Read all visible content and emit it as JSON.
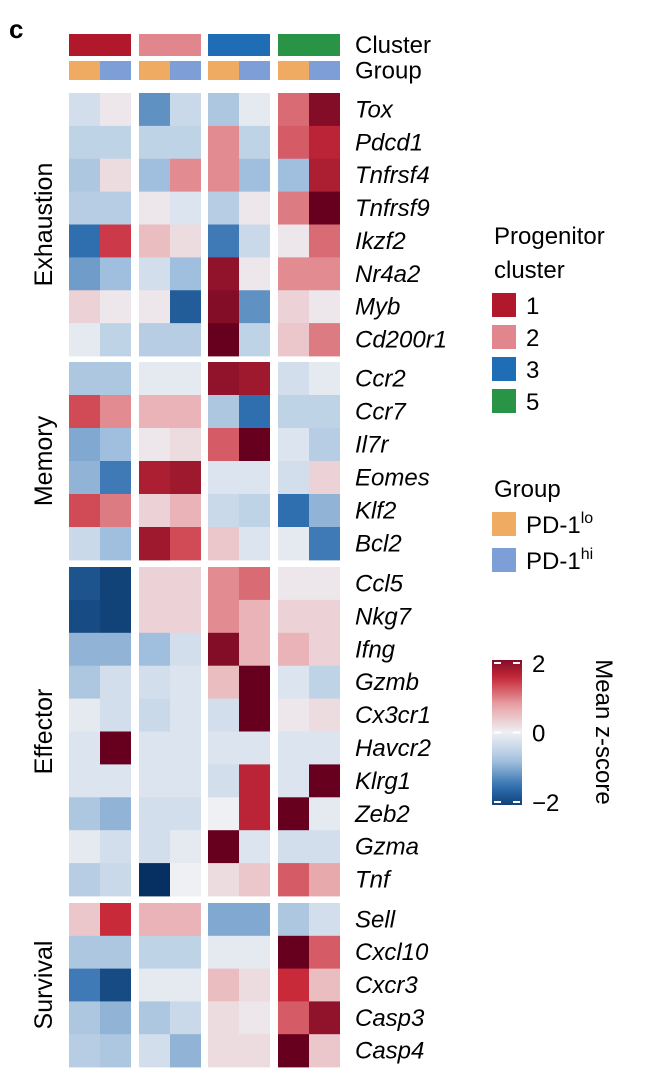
{
  "panel_label": "c",
  "chart_data": {
    "type": "heatmap",
    "annotation_rows": [
      {
        "label": "Cluster",
        "values": [
          "1",
          "1",
          "2",
          "2",
          "3",
          "3",
          "5",
          "5"
        ]
      },
      {
        "label": "Group",
        "values": [
          "PD-1lo",
          "PD-1hi",
          "PD-1lo",
          "PD-1hi",
          "PD-1lo",
          "PD-1hi",
          "PD-1lo",
          "PD-1hi"
        ]
      }
    ],
    "row_groups": [
      {
        "name": "Exhaustion",
        "genes": [
          "Tox",
          "Pdcd1",
          "Tnfrsf4",
          "Tnfrsf9",
          "Ikzf2",
          "Nr4a2",
          "Myb",
          "Cd200r1"
        ]
      },
      {
        "name": "Memory",
        "genes": [
          "Ccr2",
          "Ccr7",
          "Il7r",
          "Eomes",
          "Klf2",
          "Bcl2"
        ]
      },
      {
        "name": "Effector",
        "genes": [
          "Ccl5",
          "Nkg7",
          "Ifng",
          "Gzmb",
          "Cx3cr1",
          "Havcr2",
          "Klrg1",
          "Zeb2",
          "Gzma",
          "Tnf"
        ]
      },
      {
        "name": "Survival",
        "genes": [
          "Sell",
          "Cxcl10",
          "Cxcr3",
          "Casp3",
          "Casp4"
        ]
      }
    ],
    "values": [
      [
        -0.3,
        0.1,
        -1.2,
        -0.4,
        -0.7,
        -0.1,
        1.1,
        2.0
      ],
      [
        -0.5,
        -0.5,
        -0.5,
        -0.5,
        0.9,
        -0.5,
        1.2,
        1.6
      ],
      [
        -0.7,
        0.2,
        -0.8,
        0.9,
        0.9,
        -0.8,
        -0.8,
        1.7
      ],
      [
        -0.6,
        -0.6,
        0.1,
        -0.2,
        -0.6,
        0.1,
        1.0,
        2.5
      ],
      [
        -1.5,
        1.4,
        0.5,
        0.2,
        -1.4,
        -0.4,
        0.1,
        1.1
      ],
      [
        -1.1,
        -0.8,
        -0.3,
        -0.8,
        1.9,
        0.1,
        0.9,
        0.9
      ],
      [
        0.3,
        0.1,
        0.1,
        -1.7,
        2.0,
        -1.2,
        0.3,
        0.1
      ],
      [
        -0.1,
        -0.5,
        -0.6,
        -0.6,
        2.2,
        -0.5,
        0.4,
        1.0
      ],
      [
        -0.7,
        -0.7,
        -0.1,
        -0.1,
        1.9,
        1.8,
        -0.3,
        -0.1
      ],
      [
        1.3,
        0.9,
        0.6,
        0.6,
        -0.7,
        -1.5,
        -0.5,
        -0.5
      ],
      [
        -1.0,
        -0.8,
        0.1,
        0.2,
        1.2,
        2.2,
        -0.2,
        -0.6
      ],
      [
        -0.9,
        -1.4,
        1.7,
        1.8,
        -0.2,
        -0.2,
        -0.3,
        0.3
      ],
      [
        1.3,
        1.0,
        0.3,
        0.6,
        -0.4,
        -0.5,
        -1.5,
        -0.9
      ],
      [
        -0.4,
        -0.8,
        1.8,
        1.3,
        0.4,
        -0.2,
        -0.1,
        -1.4
      ],
      [
        -1.8,
        -2.0,
        0.3,
        0.3,
        0.9,
        1.1,
        0.1,
        0.1
      ],
      [
        -1.9,
        -2.0,
        0.3,
        0.3,
        0.9,
        0.6,
        0.3,
        0.3
      ],
      [
        -0.9,
        -0.9,
        -0.8,
        -0.3,
        2.0,
        0.6,
        0.6,
        0.3
      ],
      [
        -0.7,
        -0.3,
        -0.3,
        -0.2,
        0.5,
        2.6,
        -0.2,
        -0.5
      ],
      [
        -0.1,
        -0.3,
        -0.4,
        -0.2,
        -0.3,
        2.6,
        0.1,
        0.2
      ],
      [
        -0.2,
        2.6,
        -0.2,
        -0.2,
        -0.2,
        -0.2,
        -0.2,
        -0.2
      ],
      [
        -0.2,
        -0.2,
        -0.2,
        -0.2,
        -0.3,
        1.6,
        -0.2,
        2.4
      ],
      [
        -0.7,
        -0.9,
        -0.3,
        -0.3,
        0.0,
        1.6,
        2.2,
        -0.1
      ],
      [
        -0.1,
        -0.3,
        -0.3,
        -0.1,
        2.7,
        -0.2,
        -0.3,
        -0.3
      ],
      [
        -0.6,
        -0.4,
        -2.2,
        0.0,
        0.2,
        0.4,
        1.2,
        0.7
      ],
      [
        0.4,
        1.5,
        0.6,
        0.6,
        -1.0,
        -1.0,
        -0.7,
        -0.3
      ],
      [
        -0.7,
        -0.7,
        -0.5,
        -0.5,
        -0.1,
        -0.1,
        2.2,
        1.2
      ],
      [
        -1.4,
        -1.9,
        -0.1,
        -0.1,
        0.5,
        0.2,
        1.5,
        0.5
      ],
      [
        -0.7,
        -0.9,
        -0.7,
        -0.4,
        0.2,
        0.1,
        1.2,
        1.9
      ],
      [
        -0.6,
        -0.7,
        -0.3,
        -0.9,
        0.2,
        0.2,
        2.2,
        0.4
      ]
    ],
    "progenitor_legend": {
      "title": "Progenitor cluster",
      "title_lines": [
        "Progenitor",
        "cluster"
      ],
      "items": [
        {
          "label": "1",
          "color": "#b2182b"
        },
        {
          "label": "2",
          "color": "#e0868c"
        },
        {
          "label": "3",
          "color": "#1f6db4"
        },
        {
          "label": "5",
          "color": "#2a9446"
        }
      ]
    },
    "group_legend": {
      "title": "Group",
      "items": [
        {
          "label": "PD-1lo",
          "base": "PD-1",
          "sup": "lo",
          "color": "#f0ab62"
        },
        {
          "label": "PD-1hi",
          "base": "PD-1",
          "sup": "hi",
          "color": "#7e9ed8"
        }
      ]
    },
    "colorbar": {
      "title": "Mean z-score",
      "min": -2,
      "max": 2,
      "ticks": [
        "2",
        "0",
        "−2"
      ]
    },
    "colors": {
      "high": "#67001f",
      "mid": "#f7f7f7",
      "low": "#053061"
    }
  }
}
